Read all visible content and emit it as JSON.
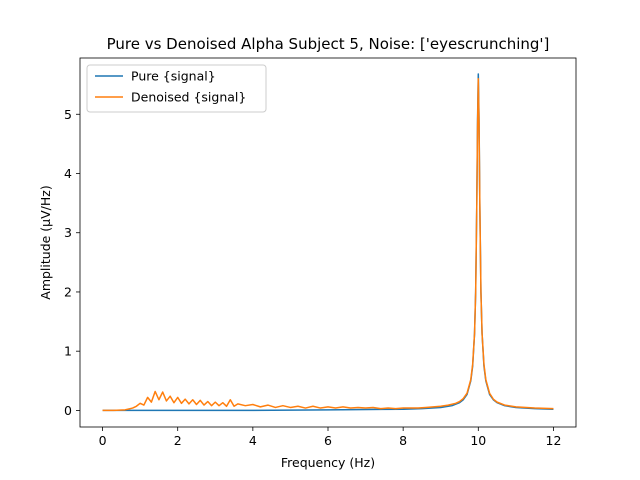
{
  "chart_data": {
    "type": "line",
    "title": "Pure vs Denoised Alpha Subject 5, Noise: ['eyescrunching']",
    "xlabel": "Frequency (Hz)",
    "ylabel": "Amplitude (μV/Hz)",
    "xlim": [
      -0.6,
      12.6
    ],
    "ylim": [
      -0.28,
      5.95
    ],
    "xticks": [
      0,
      2,
      4,
      6,
      8,
      10,
      12
    ],
    "yticks": [
      0,
      1,
      2,
      3,
      4,
      5
    ],
    "grid": false,
    "legend_position": "top-left",
    "series": [
      {
        "name": "Pure {signal}",
        "color": "#1f77b4",
        "x": [
          0,
          2,
          4,
          6,
          8,
          8.5,
          9,
          9.3,
          9.5,
          9.6,
          9.7,
          9.8,
          9.85,
          9.9,
          9.93,
          9.96,
          9.98,
          10.0,
          10.02,
          10.04,
          10.07,
          10.1,
          10.15,
          10.2,
          10.3,
          10.4,
          10.5,
          10.7,
          11,
          11.5,
          12
        ],
        "y": [
          0,
          0,
          0,
          0.01,
          0.02,
          0.03,
          0.05,
          0.08,
          0.13,
          0.18,
          0.27,
          0.5,
          0.75,
          1.3,
          2.0,
          3.5,
          4.9,
          5.68,
          4.9,
          3.5,
          2.0,
          1.3,
          0.75,
          0.5,
          0.27,
          0.18,
          0.13,
          0.08,
          0.05,
          0.03,
          0.02
        ]
      },
      {
        "name": "Denoised {signal}",
        "color": "#ff7f0e",
        "x": [
          0,
          0.3,
          0.6,
          0.8,
          0.9,
          1.0,
          1.1,
          1.2,
          1.3,
          1.4,
          1.5,
          1.6,
          1.7,
          1.8,
          1.9,
          2.0,
          2.1,
          2.2,
          2.3,
          2.4,
          2.5,
          2.6,
          2.7,
          2.8,
          2.9,
          3.0,
          3.1,
          3.2,
          3.3,
          3.4,
          3.5,
          3.6,
          3.8,
          4.0,
          4.2,
          4.4,
          4.6,
          4.8,
          5.0,
          5.2,
          5.4,
          5.6,
          5.8,
          6.0,
          6.2,
          6.4,
          6.6,
          6.8,
          7.0,
          7.2,
          7.4,
          7.6,
          7.8,
          8.0,
          8.2,
          8.4,
          8.6,
          8.8,
          9.0,
          9.2,
          9.4,
          9.5,
          9.6,
          9.7,
          9.8,
          9.85,
          9.9,
          9.93,
          9.96,
          9.98,
          10.0,
          10.02,
          10.04,
          10.07,
          10.1,
          10.15,
          10.2,
          10.3,
          10.4,
          10.5,
          10.7,
          11,
          11.5,
          12
        ],
        "y": [
          0,
          0,
          0.01,
          0.04,
          0.07,
          0.12,
          0.09,
          0.22,
          0.14,
          0.32,
          0.18,
          0.31,
          0.16,
          0.24,
          0.13,
          0.22,
          0.12,
          0.19,
          0.11,
          0.18,
          0.1,
          0.17,
          0.09,
          0.15,
          0.08,
          0.14,
          0.08,
          0.13,
          0.07,
          0.18,
          0.07,
          0.11,
          0.08,
          0.1,
          0.06,
          0.09,
          0.05,
          0.08,
          0.05,
          0.07,
          0.04,
          0.07,
          0.04,
          0.06,
          0.04,
          0.06,
          0.04,
          0.05,
          0.04,
          0.05,
          0.03,
          0.04,
          0.03,
          0.04,
          0.04,
          0.04,
          0.05,
          0.06,
          0.07,
          0.09,
          0.12,
          0.15,
          0.2,
          0.29,
          0.52,
          0.78,
          1.3,
          2.0,
          3.5,
          4.8,
          5.6,
          4.8,
          3.5,
          2.0,
          1.3,
          0.78,
          0.52,
          0.29,
          0.19,
          0.14,
          0.09,
          0.06,
          0.04,
          0.03
        ]
      }
    ]
  }
}
